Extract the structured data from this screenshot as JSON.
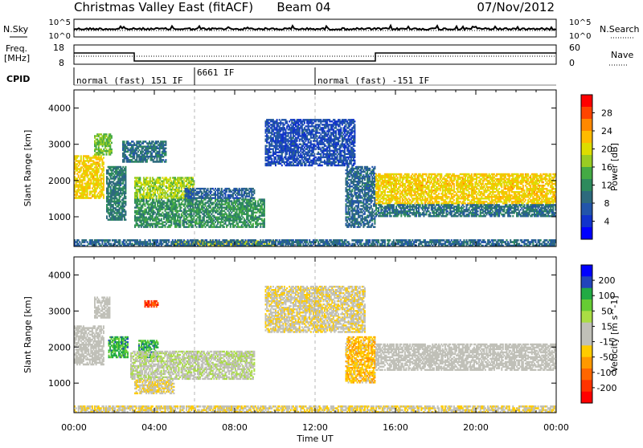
{
  "header": {
    "station": "Christmas Valley East (fitACF)",
    "beam": "Beam 04",
    "date": "07/Nov/2012"
  },
  "status_panel": {
    "nsky_label": "N.Sky",
    "nsky_ticks": [
      "10^5",
      "10^0"
    ],
    "nsearch_ticks": [
      "10^5",
      "10^0"
    ],
    "nsearch_label": "N.Search",
    "freq_label": "Freq.",
    "freq_unit": "[MHz]",
    "freq_ticks": [
      "18",
      "8"
    ],
    "nave_ticks": [
      "60",
      "0"
    ],
    "nave_label": "Nave",
    "cpid_label": "CPID",
    "freq_steps": [
      [
        0,
        15
      ],
      [
        3,
        15
      ],
      [
        3,
        10
      ],
      [
        15,
        10
      ],
      [
        15,
        15
      ],
      [
        24,
        15
      ]
    ],
    "freq_range": [
      8,
      18
    ],
    "cpid_segments": [
      {
        "start": 0,
        "end": 6,
        "label": "normal (fast) 151 IF"
      },
      {
        "start": 6,
        "end": 12,
        "label": "6661 IF"
      },
      {
        "start": 12,
        "end": 24,
        "label": "normal (fast) -151 IF"
      }
    ]
  },
  "colorbars": {
    "power": {
      "title": "Power [dB]",
      "ticks": [
        "28",
        "24",
        "20",
        "16",
        "12",
        "8",
        "4"
      ],
      "colors": [
        "#ff0000",
        "#ff4400",
        "#ff8800",
        "#ffbb00",
        "#dddd00",
        "#99cc22",
        "#44aa44",
        "#2d8a5d",
        "#2d6a7d",
        "#2255aa",
        "#1133cc",
        "#0000ff"
      ]
    },
    "velocity": {
      "title": "Velocity [m s^-1]",
      "ticks": [
        "200",
        "100",
        "50",
        "15",
        "-15",
        "-50",
        "-100",
        "-200"
      ],
      "colors": [
        "#0000ff",
        "#2244bb",
        "#22aa44",
        "#66cc33",
        "#aadd44",
        "#c0c0b8",
        "#c0c0b8",
        "#ffcc00",
        "#ff9900",
        "#ff6600",
        "#ff3300",
        "#ff0000"
      ]
    }
  },
  "chart_data": [
    {
      "type": "heatmap",
      "title": "Power [dB]",
      "ylabel": "Slant Range [km]",
      "xlabel": "Time UT",
      "xlim": [
        0,
        24
      ],
      "ylim": [
        180,
        4500
      ],
      "yticks": [
        "1000",
        "2000",
        "3000",
        "4000"
      ],
      "regions": [
        {
          "t0": 0.0,
          "t1": 1.5,
          "r0": 1500,
          "r1": 2700,
          "v": 22
        },
        {
          "t0": 1.0,
          "t1": 1.9,
          "r0": 2700,
          "r1": 3300,
          "v": 16
        },
        {
          "t0": 1.6,
          "t1": 2.6,
          "r0": 900,
          "r1": 2400,
          "v": 10
        },
        {
          "t0": 2.4,
          "t1": 4.6,
          "r0": 2500,
          "r1": 3100,
          "v": 9
        },
        {
          "t0": 3.0,
          "t1": 6.0,
          "r0": 1500,
          "r1": 2100,
          "v": 18
        },
        {
          "t0": 3.0,
          "t1": 9.5,
          "r0": 700,
          "r1": 1500,
          "v": 12
        },
        {
          "t0": 5.5,
          "t1": 9.0,
          "r0": 1500,
          "r1": 1800,
          "v": 7
        },
        {
          "t0": 5.0,
          "t1": 10.0,
          "r0": 180,
          "r1": 350,
          "v": 20
        },
        {
          "t0": 9.5,
          "t1": 14.0,
          "r0": 2400,
          "r1": 3700,
          "v": 5
        },
        {
          "t0": 13.5,
          "t1": 15.0,
          "r0": 700,
          "r1": 2400,
          "v": 8
        },
        {
          "t0": 15.0,
          "t1": 24.0,
          "r0": 1350,
          "r1": 2200,
          "v": 22
        },
        {
          "t0": 15.0,
          "t1": 24.0,
          "r0": 1000,
          "r1": 1350,
          "v": 9
        },
        {
          "t0": 0.0,
          "t1": 24.0,
          "r0": 180,
          "r1": 380,
          "v": 8
        }
      ]
    },
    {
      "type": "heatmap",
      "title": "Velocity [m s^-1]",
      "ylabel": "Slant Range [km]",
      "xlabel": "Time UT",
      "xlim": [
        0,
        24
      ],
      "ylim": [
        180,
        4500
      ],
      "yticks": [
        "1000",
        "2000",
        "3000",
        "4000"
      ],
      "xticks": [
        "00:00",
        "04:00",
        "08:00",
        "12:00",
        "16:00",
        "20:00",
        "00:00"
      ],
      "regions": [
        {
          "t0": 0.0,
          "t1": 1.5,
          "r0": 1500,
          "r1": 2600,
          "v": 0
        },
        {
          "t0": 1.0,
          "t1": 1.8,
          "r0": 2800,
          "r1": 3400,
          "v": 0
        },
        {
          "t0": 1.7,
          "t1": 2.7,
          "r0": 1700,
          "r1": 2300,
          "v": 150
        },
        {
          "t0": 3.2,
          "t1": 4.2,
          "r0": 1700,
          "r1": 2200,
          "v": 150
        },
        {
          "t0": 3.5,
          "t1": 4.2,
          "r0": 3100,
          "r1": 3300,
          "v": -200
        },
        {
          "t0": 2.8,
          "t1": 9.0,
          "r0": 1100,
          "r1": 1900,
          "v": 30
        },
        {
          "t0": 3.0,
          "t1": 5.0,
          "r0": 700,
          "r1": 1100,
          "v": -40
        },
        {
          "t0": 9.5,
          "t1": 14.5,
          "r0": 2400,
          "r1": 3700,
          "v": -30
        },
        {
          "t0": 13.5,
          "t1": 15.0,
          "r0": 1000,
          "r1": 2300,
          "v": -80
        },
        {
          "t0": 15.0,
          "t1": 24.0,
          "r0": 1350,
          "r1": 2100,
          "v": 0
        },
        {
          "t0": 0.0,
          "t1": 24.0,
          "r0": 180,
          "r1": 380,
          "v": -40
        }
      ]
    }
  ]
}
